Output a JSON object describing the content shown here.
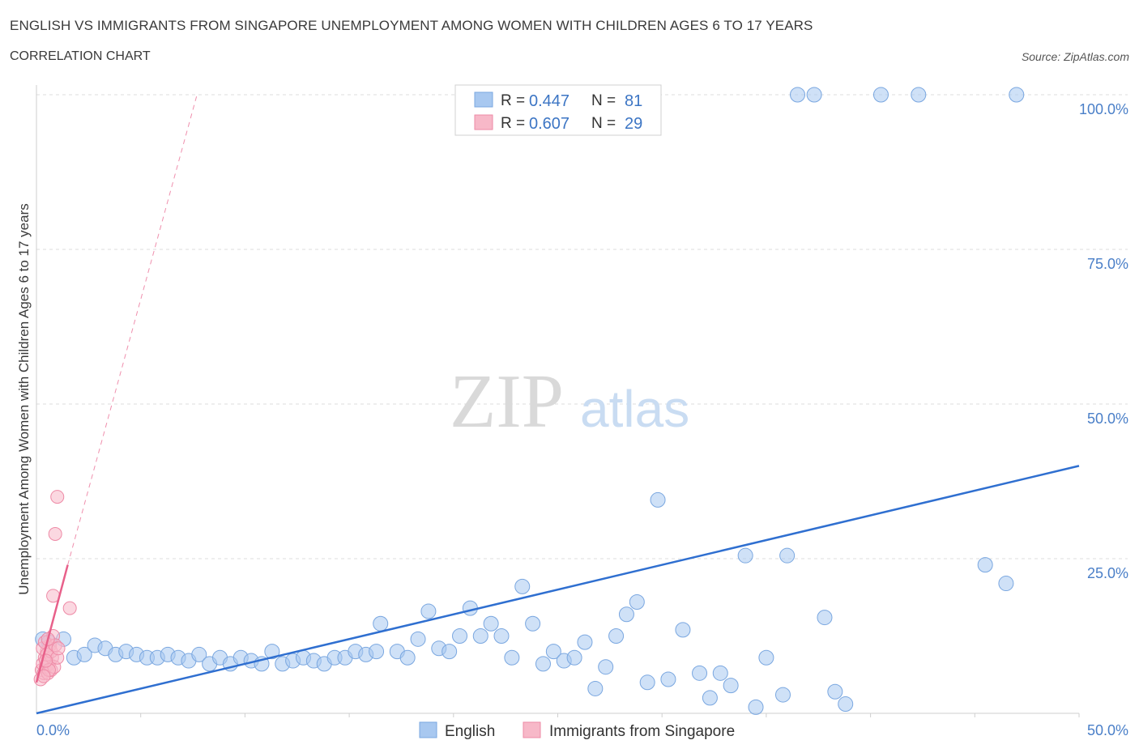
{
  "title": "ENGLISH VS IMMIGRANTS FROM SINGAPORE UNEMPLOYMENT AMONG WOMEN WITH CHILDREN AGES 6 TO 17 YEARS",
  "subtitle": "CORRELATION CHART",
  "source": "Source: ZipAtlas.com",
  "watermark": {
    "zip": "ZIP",
    "atlas": "atlas"
  },
  "legend": {
    "r_label": "R =",
    "n_label": "N =",
    "entries": [
      {
        "r": "0.447",
        "n": "81",
        "color": "#a8c8f0"
      },
      {
        "r": "0.607",
        "n": "29",
        "color": "#f7b8c8"
      }
    ]
  },
  "colors": {
    "english": "#a8c8f0",
    "english_stroke": "#7aa7e0",
    "english_line": "#2f6fd0",
    "singapore": "#f7b8c8",
    "singapore_stroke": "#ee8aa6",
    "singapore_line": "#e8608a"
  },
  "chart_data": {
    "type": "scatter",
    "title": "ENGLISH VS IMMIGRANTS FROM SINGAPORE UNEMPLOYMENT AMONG WOMEN WITH CHILDREN AGES 6 TO 17 YEARS",
    "xlabel": "",
    "ylabel": "Unemployment Among Women with Children Ages 6 to 17 years",
    "xlim": [
      0,
      50
    ],
    "ylim": [
      0,
      100
    ],
    "x_tick_labels": [
      "0.0%",
      "50.0%"
    ],
    "y_tick_labels": [
      "100.0%",
      "75.0%",
      "50.0%",
      "25.0%"
    ],
    "y_ticks": [
      100,
      75,
      50,
      25
    ],
    "grid": true,
    "legend_position": "top-center",
    "series": [
      {
        "name": "English",
        "trend": [
          [
            0,
            0
          ],
          [
            50,
            40
          ]
        ],
        "points": [
          [
            0.3,
            12
          ],
          [
            0.6,
            11.5
          ],
          [
            1.3,
            12
          ],
          [
            1.8,
            9
          ],
          [
            2.3,
            9.5
          ],
          [
            2.8,
            11
          ],
          [
            3.3,
            10.5
          ],
          [
            3.8,
            9.5
          ],
          [
            4.3,
            10
          ],
          [
            4.8,
            9.5
          ],
          [
            5.3,
            9
          ],
          [
            5.8,
            9
          ],
          [
            6.3,
            9.5
          ],
          [
            6.8,
            9
          ],
          [
            7.3,
            8.5
          ],
          [
            7.8,
            9.5
          ],
          [
            8.3,
            8
          ],
          [
            8.8,
            9
          ],
          [
            9.3,
            8
          ],
          [
            9.8,
            9
          ],
          [
            10.3,
            8.5
          ],
          [
            10.8,
            8
          ],
          [
            11.3,
            10
          ],
          [
            11.8,
            8
          ],
          [
            12.3,
            8.5
          ],
          [
            12.8,
            9
          ],
          [
            13.3,
            8.5
          ],
          [
            13.8,
            8
          ],
          [
            14.3,
            9
          ],
          [
            14.8,
            9
          ],
          [
            15.3,
            10
          ],
          [
            15.8,
            9.5
          ],
          [
            16.3,
            10
          ],
          [
            16.5,
            14.5
          ],
          [
            17.3,
            10
          ],
          [
            17.8,
            9
          ],
          [
            18.3,
            12
          ],
          [
            18.8,
            16.5
          ],
          [
            19.3,
            10.5
          ],
          [
            19.8,
            10
          ],
          [
            20.3,
            12.5
          ],
          [
            20.8,
            17
          ],
          [
            21.3,
            12.5
          ],
          [
            21.8,
            14.5
          ],
          [
            22.3,
            12.5
          ],
          [
            22.8,
            9
          ],
          [
            23.3,
            20.5
          ],
          [
            23.8,
            14.5
          ],
          [
            24.3,
            8
          ],
          [
            24.8,
            10
          ],
          [
            25.3,
            8.5
          ],
          [
            25.8,
            9
          ],
          [
            26.3,
            11.5
          ],
          [
            26.8,
            4
          ],
          [
            27.3,
            7.5
          ],
          [
            27.8,
            12.5
          ],
          [
            28.3,
            16
          ],
          [
            28.8,
            18
          ],
          [
            29.3,
            5
          ],
          [
            29.8,
            34.5
          ],
          [
            30.3,
            5.5
          ],
          [
            31.0,
            13.5
          ],
          [
            31.8,
            6.5
          ],
          [
            32.3,
            2.5
          ],
          [
            32.8,
            6.5
          ],
          [
            33.3,
            4.5
          ],
          [
            34.0,
            25.5
          ],
          [
            34.5,
            1
          ],
          [
            35.0,
            9
          ],
          [
            35.8,
            3
          ],
          [
            36.0,
            25.5
          ],
          [
            36.5,
            100
          ],
          [
            37.3,
            100
          ],
          [
            37.8,
            15.5
          ],
          [
            38.3,
            3.5
          ],
          [
            38.8,
            1.5
          ],
          [
            40.5,
            100
          ],
          [
            42.3,
            100
          ],
          [
            45.5,
            24
          ],
          [
            46.5,
            21
          ],
          [
            47,
            100
          ]
        ]
      },
      {
        "name": "Immigrants from Singapore",
        "trend": [
          [
            0,
            5
          ],
          [
            1.5,
            24
          ]
        ],
        "trend_extension": [
          [
            1.5,
            24
          ],
          [
            7.7,
            100
          ]
        ],
        "points": [
          [
            0.2,
            5.5
          ],
          [
            0.25,
            7
          ],
          [
            0.3,
            8
          ],
          [
            0.35,
            6.5
          ],
          [
            0.4,
            9
          ],
          [
            0.45,
            7.5
          ],
          [
            0.5,
            10
          ],
          [
            0.55,
            6.5
          ],
          [
            0.6,
            8
          ],
          [
            0.65,
            11
          ],
          [
            0.7,
            7
          ],
          [
            0.75,
            9
          ],
          [
            0.8,
            12.5
          ],
          [
            0.85,
            7.5
          ],
          [
            0.3,
            10.5
          ],
          [
            0.4,
            11.5
          ],
          [
            0.5,
            9.5
          ],
          [
            0.6,
            7
          ],
          [
            0.7,
            10
          ],
          [
            0.9,
            11
          ],
          [
            1.0,
            9
          ],
          [
            1.05,
            10.5
          ],
          [
            0.8,
            19
          ],
          [
            0.9,
            29
          ],
          [
            1.0,
            35
          ],
          [
            1.6,
            17
          ],
          [
            0.35,
            6
          ],
          [
            0.45,
            8.5
          ],
          [
            0.55,
            12
          ]
        ]
      }
    ]
  },
  "bottom_legend": [
    {
      "label": "English",
      "color": "#a8c8f0"
    },
    {
      "label": "Immigrants from Singapore",
      "color": "#f7b8c8"
    }
  ]
}
